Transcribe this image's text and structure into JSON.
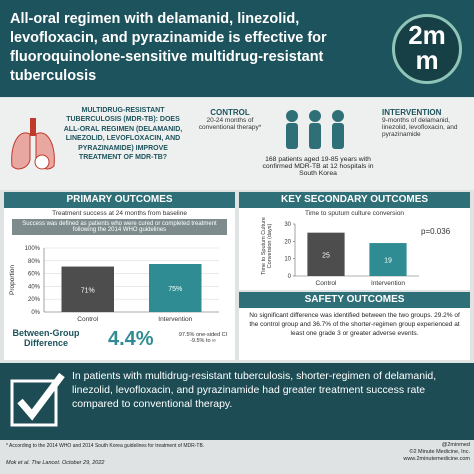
{
  "header": {
    "title": "All-oral regimen with delamanid, linezolid, levofloxacin, and pyrazinamide is effective for fluoroquinolone-sensitive multidrug-resistant tuberculosis",
    "logo_top": "2m",
    "logo_bottom": "m"
  },
  "question": "MULTIDRUG-RESISTANT TUBERCULOSIS (MDR-TB): DOES ALL-ORAL REGIMEN (DELAMANID, LINEZOLID, LEVOFLOXACIN, AND PYRAZINAMIDE) IMPROVE TREATMENT OF MDR-TB?",
  "study": {
    "control_label": "CONTROL",
    "control_text": "20-24 months of conventional therapy*",
    "population": "168 patients aged 19-85 years with confirmed MDR-TB at 12 hospitals in South Korea",
    "intervention_label": "INTERVENTION",
    "intervention_text": "9-months of delamanid, linezolid, levofloxacin, and pyrazinamide"
  },
  "primary": {
    "title": "PRIMARY OUTCOMES",
    "subtitle": "Treatment success at 24 months from baseline",
    "definition": "Success was defined as patients who were cured or completed treatment following the 2014 WHO guidelines",
    "chart": {
      "type": "bar",
      "categories": [
        "Control",
        "Intervention"
      ],
      "values": [
        71,
        75
      ],
      "value_labels": [
        "71%",
        "75%"
      ],
      "colors": [
        "#4d4d4d",
        "#2f8c92"
      ],
      "ylabel": "Proportion",
      "ylim": [
        0,
        100
      ],
      "yticks": [
        {
          "value": 0,
          "label": "0%"
        },
        {
          "value": 20,
          "label": "20%"
        },
        {
          "value": 40,
          "label": "40%"
        },
        {
          "value": 60,
          "label": "60%"
        },
        {
          "value": 80,
          "label": "80%"
        },
        {
          "value": 100,
          "label": "100%"
        }
      ],
      "grid": true
    },
    "difference_label": "Between-Group Difference",
    "difference": "4.4%",
    "ci_label": "97.5% one-sided CI",
    "ci": "-9.5% to ∞"
  },
  "secondary": {
    "title": "KEY SECONDARY OUTCOMES",
    "subtitle": "Time to sputum culture conversion",
    "chart": {
      "type": "bar",
      "categories": [
        "Control",
        "Intervention"
      ],
      "values": [
        25,
        19
      ],
      "colors": [
        "#4d4d4d",
        "#2f8c92"
      ],
      "ylabel": "Time to Sputum Culture Conversion (days)",
      "ylim": [
        0,
        30
      ],
      "yticks": [
        0,
        10,
        20,
        30
      ],
      "grid": false,
      "annotation": "p=0.036"
    }
  },
  "safety": {
    "title": "SAFETY OUTCOMES",
    "text": "No significant difference was identified between the two groups. 29.2% of the control group and 36.7% of the shorter-regimen group experienced at least one grade 3 or greater adverse events."
  },
  "conclusion": "In patients with multidrug-resistant tuberculosis, shorter-regimen of delamanid, linezolid, levofloxacin, and pyrazinamide had greater treatment success rate compared to conventional therapy.",
  "footer": {
    "note": "* According to the 2014 WHO and 2014 South Korea guidelines for treatment of MDR-TB.",
    "citation": "Mok et al. The Lancet. October 29, 2022",
    "handle": "@2minmed",
    "copyright": "©2 Minute Medicine, Inc.",
    "website": "www.2minutemedicine.com"
  }
}
